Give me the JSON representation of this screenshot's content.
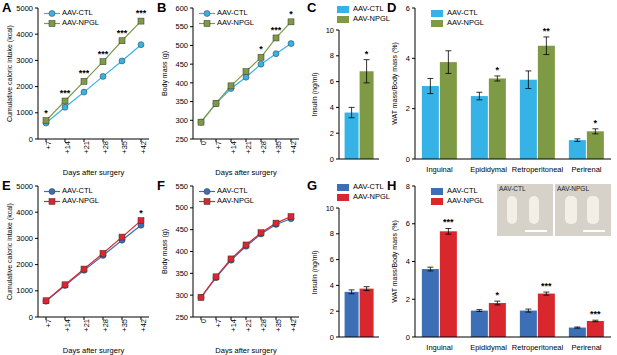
{
  "chart_data": [
    {
      "type": "line",
      "title": "A",
      "x_label": "Days after surgery",
      "y_label": "Cumulative caloric intake (kcal)",
      "categories": [
        "+7",
        "+14",
        "+21",
        "+28",
        "+35",
        "+42"
      ],
      "ylim": [
        0,
        5000
      ],
      "yticks": [
        0,
        1000,
        2000,
        3000,
        4000,
        5000
      ],
      "grid": false,
      "legend": "upper left",
      "series": [
        {
          "name": "AAV-CTL",
          "color": "#35b3e6",
          "marker": "circle",
          "values": [
            610,
            1210,
            1790,
            2390,
            2980,
            3600
          ]
        },
        {
          "name": "AAV-NPGL",
          "color": "#7f9a45",
          "marker": "square",
          "values": [
            700,
            1450,
            2200,
            2950,
            3750,
            4500
          ],
          "annotations": [
            "*",
            "***",
            "***",
            "***",
            "***",
            "***"
          ]
        }
      ]
    },
    {
      "type": "line",
      "title": "B",
      "x_label": "Days after surgery",
      "y_label": "Body mass (g)",
      "categories": [
        "0",
        "+7",
        "+14",
        "+21",
        "+28",
        "+35",
        "+42"
      ],
      "ylim": [
        250,
        600
      ],
      "yticks": [
        250,
        300,
        350,
        400,
        450,
        500,
        550,
        600
      ],
      "grid": false,
      "legend": "upper left",
      "series": [
        {
          "name": "AAV-CTL",
          "color": "#35b3e6",
          "marker": "circle",
          "values": [
            295,
            345,
            385,
            415,
            450,
            478,
            505
          ]
        },
        {
          "name": "AAV-NPGL",
          "color": "#7f9a45",
          "marker": "square",
          "values": [
            295,
            345,
            392,
            430,
            468,
            520,
            563
          ],
          "annotations": [
            null,
            null,
            null,
            null,
            "*",
            "***",
            "*"
          ]
        }
      ]
    },
    {
      "type": "bar",
      "title": "C",
      "y_label": "Insulin (ng/ml)",
      "categories": [
        null
      ],
      "ylim": [
        0,
        10
      ],
      "yticks": [
        0,
        2,
        4,
        6,
        8,
        10
      ],
      "grid": false,
      "legend": "top",
      "series": [
        {
          "name": "AAV-CTL",
          "color": "#35b3e6",
          "values": [
            3.6
          ],
          "errors": [
            0.4
          ]
        },
        {
          "name": "AAV-NPGL",
          "color": "#7f9a45",
          "values": [
            6.8
          ],
          "errors": [
            0.9
          ],
          "annotations": [
            "*"
          ]
        }
      ]
    },
    {
      "type": "bar",
      "title": "D",
      "y_label": "WAT mass/Body mass (%)",
      "categories": [
        "Inguinal",
        "Epididymal",
        "Retroperitoneal",
        "Perirenal"
      ],
      "ylim": [
        0,
        6
      ],
      "yticks": [
        0,
        2,
        4,
        6
      ],
      "grid": false,
      "legend": "upper left",
      "series": [
        {
          "name": "AAV-CTL",
          "color": "#35b3e6",
          "values": [
            2.9,
            2.5,
            3.15,
            0.75
          ],
          "errors": [
            0.3,
            0.15,
            0.35,
            0.05
          ]
        },
        {
          "name": "AAV-NPGL",
          "color": "#7f9a45",
          "values": [
            3.85,
            3.2,
            4.5,
            1.1
          ],
          "errors": [
            0.45,
            0.1,
            0.35,
            0.1
          ],
          "annotations": [
            null,
            "*",
            "**",
            "*"
          ]
        }
      ]
    },
    {
      "type": "line",
      "title": "E",
      "x_label": "Days after surgery",
      "y_label": "Cumulative caloric intake (kcal)",
      "categories": [
        "+7",
        "+14",
        "+21",
        "+28",
        "+35",
        "+42"
      ],
      "ylim": [
        0,
        5000
      ],
      "yticks": [
        0,
        1000,
        2000,
        3000,
        4000,
        5000
      ],
      "grid": false,
      "legend": "upper left",
      "series": [
        {
          "name": "AAV-CTL",
          "color": "#3d6fb6",
          "marker": "circle",
          "values": [
            600,
            1200,
            1780,
            2350,
            2930,
            3500
          ]
        },
        {
          "name": "AAV-NPGL",
          "color": "#d9272e",
          "marker": "square",
          "values": [
            620,
            1230,
            1830,
            2430,
            3050,
            3680
          ],
          "annotations": [
            null,
            null,
            null,
            null,
            null,
            "*"
          ]
        }
      ]
    },
    {
      "type": "line",
      "title": "F",
      "x_label": "Days after surgery",
      "y_label": "Body mass (g)",
      "categories": [
        "0",
        "+7",
        "+14",
        "+21",
        "+28",
        "+35",
        "+42"
      ],
      "ylim": [
        250,
        550
      ],
      "yticks": [
        250,
        300,
        350,
        400,
        450,
        500,
        550
      ],
      "grid": false,
      "legend": "upper left",
      "series": [
        {
          "name": "AAV-CTL",
          "color": "#3d6fb6",
          "marker": "circle",
          "values": [
            295,
            340,
            380,
            412,
            440,
            462,
            475
          ]
        },
        {
          "name": "AAV-NPGL",
          "color": "#d9272e",
          "marker": "square",
          "values": [
            295,
            342,
            383,
            415,
            443,
            465,
            480
          ]
        }
      ]
    },
    {
      "type": "bar",
      "title": "G",
      "y_label": "Insulin (ng/ml)",
      "categories": [
        null
      ],
      "ylim": [
        0,
        10
      ],
      "yticks": [
        0,
        2,
        4,
        6,
        8,
        10
      ],
      "grid": false,
      "legend": "top",
      "series": [
        {
          "name": "AAV-CTL",
          "color": "#3d6fb6",
          "values": [
            3.5
          ],
          "errors": [
            0.15
          ]
        },
        {
          "name": "AAV-NPGL",
          "color": "#d9272e",
          "values": [
            3.75
          ],
          "errors": [
            0.15
          ]
        }
      ]
    },
    {
      "type": "bar",
      "title": "H",
      "y_label": "WAT mass/Body mass (%)",
      "categories": [
        "Inguinal",
        "Epididymal",
        "Retroperitoneal",
        "Perirenal"
      ],
      "ylim": [
        0,
        8
      ],
      "yticks": [
        0,
        2,
        4,
        6,
        8
      ],
      "grid": false,
      "legend": "upper left",
      "inset_labels": [
        "AAV-CTL",
        "AAV-NPGL"
      ],
      "series": [
        {
          "name": "AAV-CTL",
          "color": "#3d6fb6",
          "values": [
            3.6,
            1.4,
            1.4,
            0.5
          ],
          "errors": [
            0.1,
            0.05,
            0.08,
            0.03
          ]
        },
        {
          "name": "AAV-NPGL",
          "color": "#d9272e",
          "values": [
            5.6,
            1.8,
            2.3,
            0.85
          ],
          "errors": [
            0.15,
            0.1,
            0.08,
            0.04
          ],
          "annotations": [
            "***",
            "*",
            "***",
            "***"
          ]
        }
      ]
    }
  ]
}
